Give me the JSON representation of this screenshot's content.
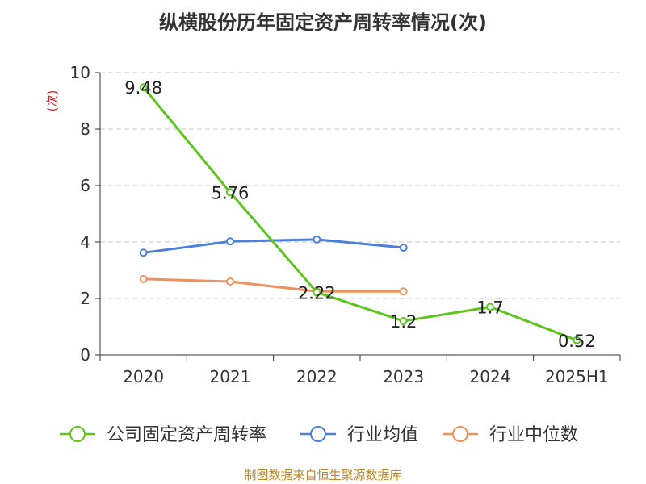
{
  "title": "纵横股份历年固定资产周转率情况(次)",
  "source": "制图数据来自恒生聚源数据库",
  "chart_data": {
    "type": "line",
    "title": "纵横股份历年固定资产周转率情况(次)",
    "ylabel": "(次)",
    "ylim": [
      0,
      10
    ],
    "y_ticks": [
      0,
      2,
      4,
      6,
      8,
      10
    ],
    "grid": true,
    "legend_position": "bottom",
    "categories": [
      "2020",
      "2021",
      "2022",
      "2023",
      "2024",
      "2025H1"
    ],
    "series": [
      {
        "name": "公司固定资产周转率",
        "color": "#5cc41c",
        "show_labels": true,
        "label_texts": [
          "9.48",
          "5.76",
          "2.22",
          "1.2",
          "1.7",
          "0.52"
        ],
        "values": [
          9.48,
          5.76,
          2.22,
          1.2,
          1.7,
          0.52
        ]
      },
      {
        "name": "行业均值",
        "color": "#4a7fdb",
        "show_labels": false,
        "values": [
          3.62,
          4.02,
          4.09,
          3.8,
          null,
          null
        ]
      },
      {
        "name": "行业中位数",
        "color": "#f0905b",
        "show_labels": false,
        "values": [
          2.69,
          2.6,
          2.25,
          2.25,
          null,
          null
        ]
      }
    ]
  }
}
